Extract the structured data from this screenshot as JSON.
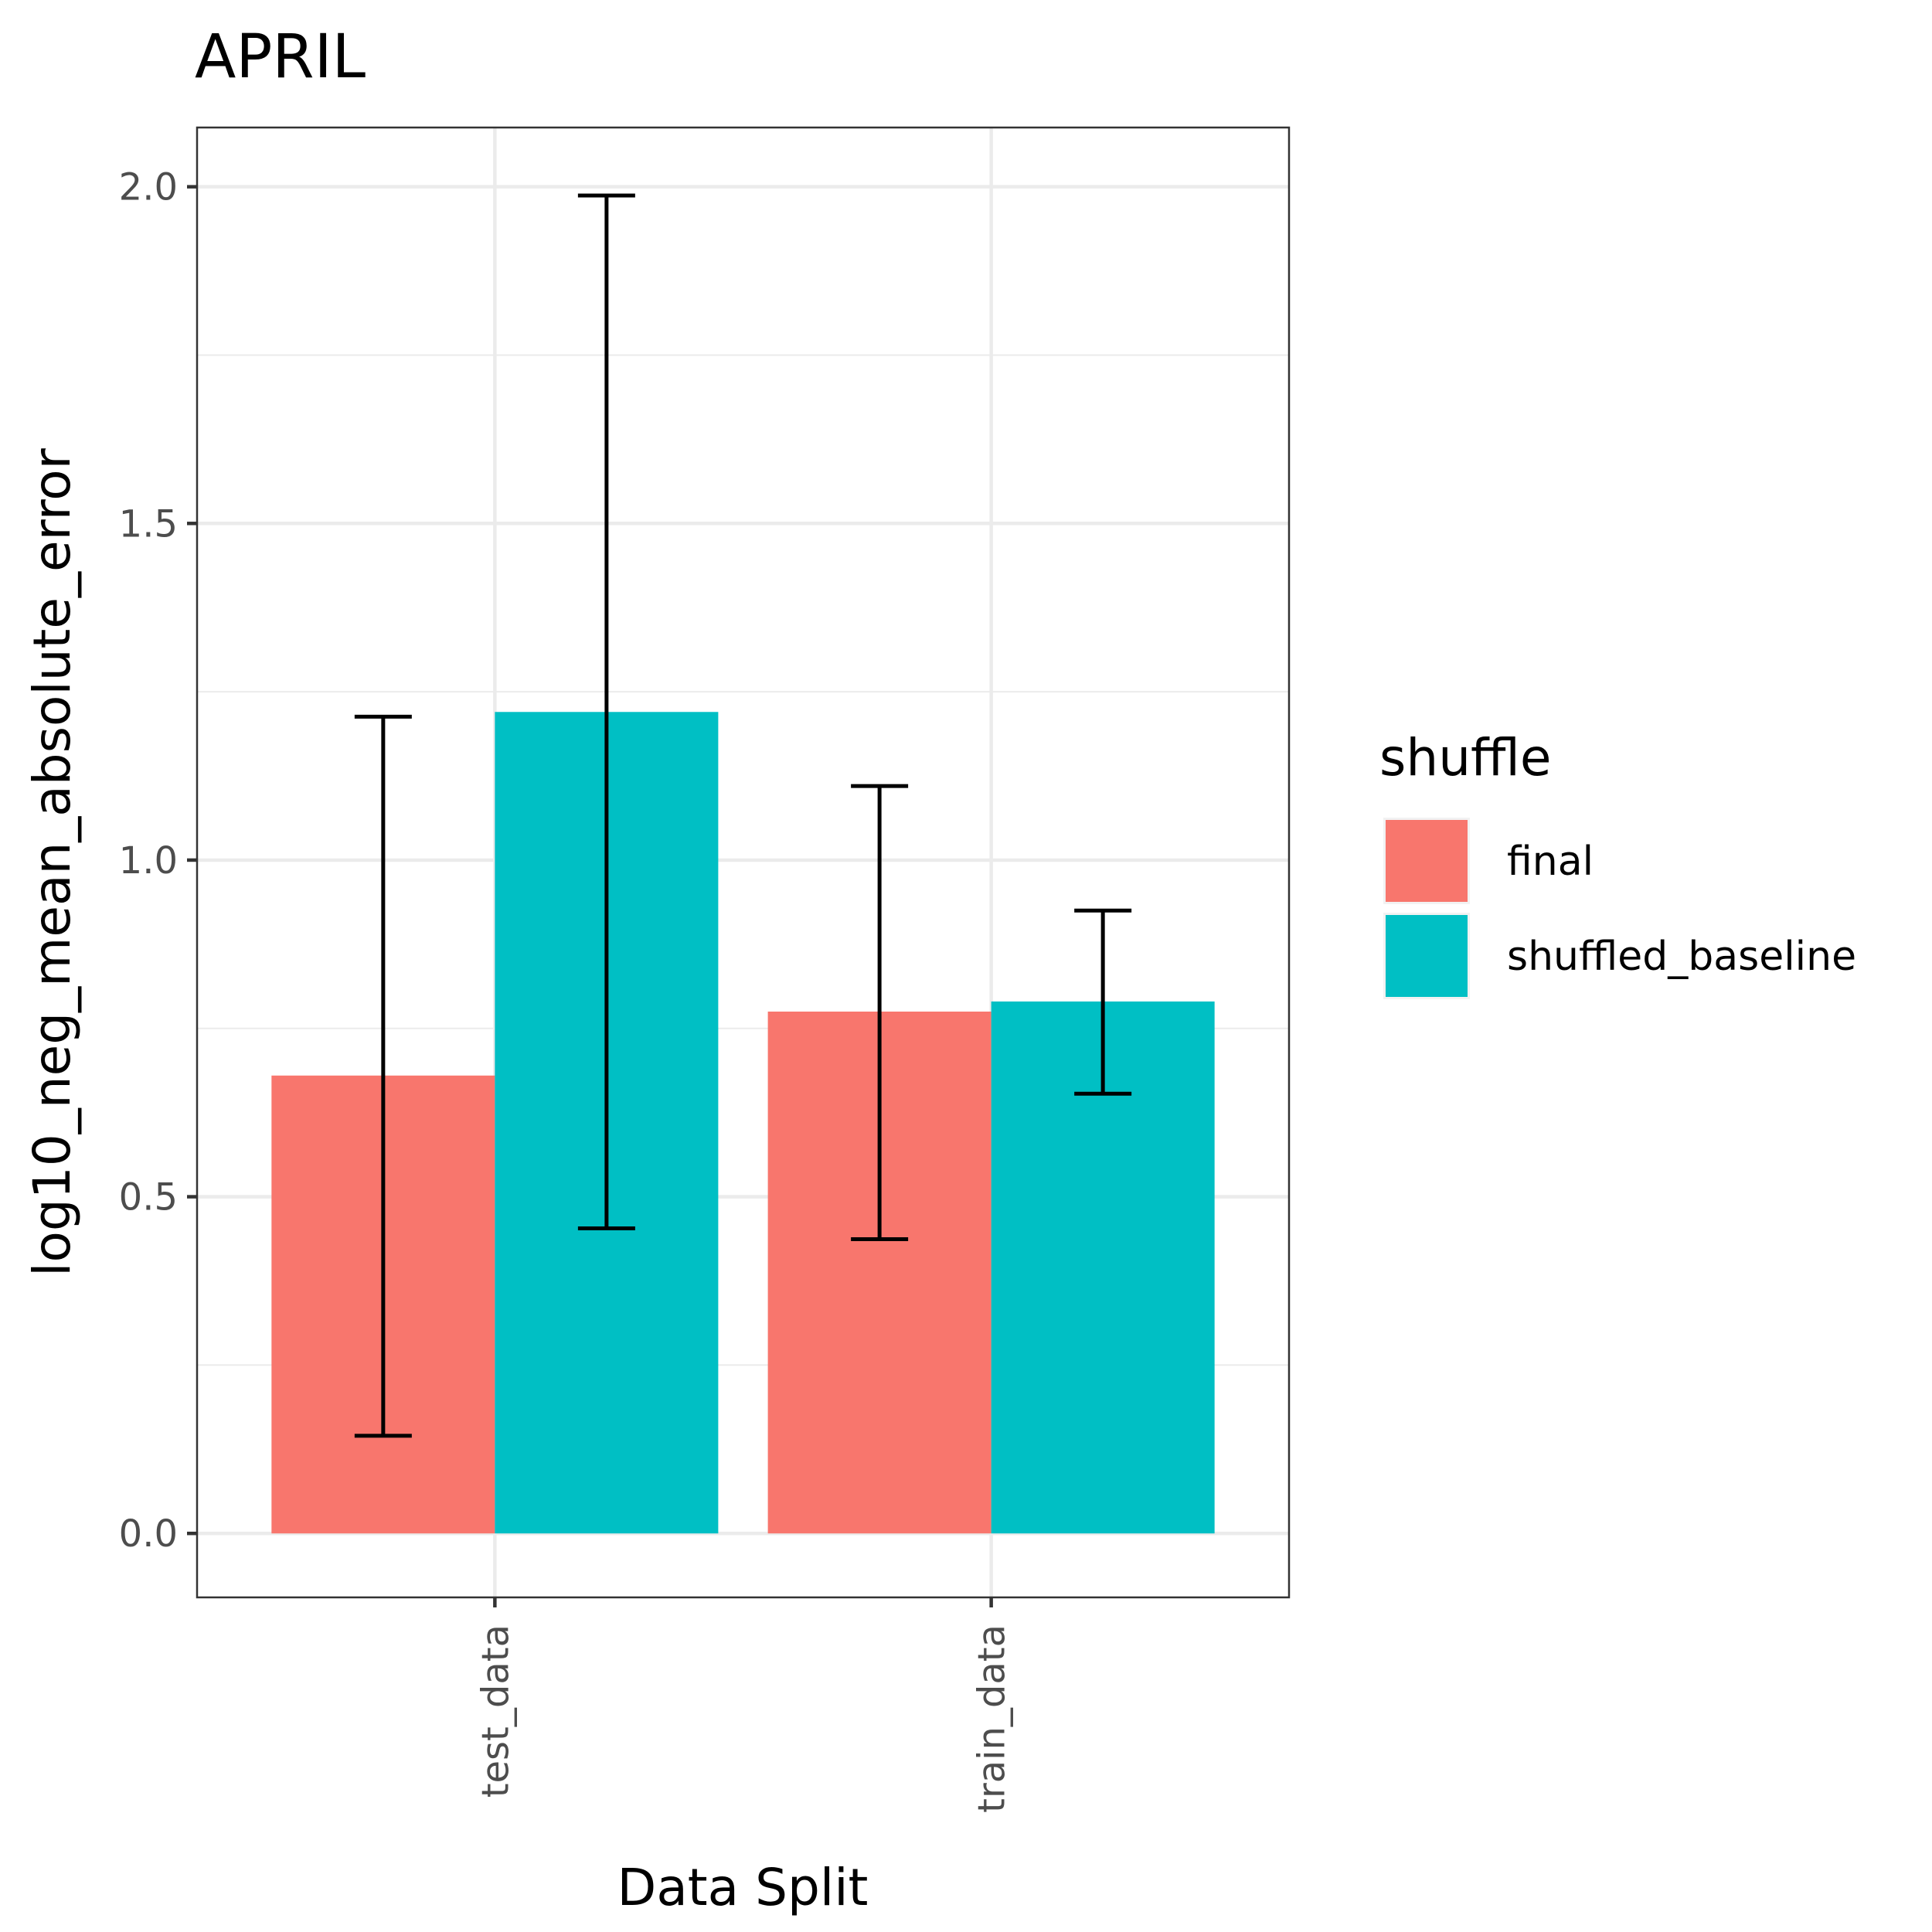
{
  "chart_data": {
    "type": "bar",
    "title": "APRIL",
    "xlabel": "Data Split",
    "ylabel": "log10_neg_mean_absolute_error",
    "categories": [
      "test_data",
      "train_data"
    ],
    "ylim": [
      -0.095,
      2.088
    ],
    "yticks": [
      "0.0",
      "0.5",
      "1.0",
      "1.5",
      "2.0"
    ],
    "ytick_values": [
      0,
      0.5,
      1.0,
      1.5,
      2.0
    ],
    "grid": true,
    "legend": {
      "title": "shuffle",
      "placement": "right"
    },
    "series": [
      {
        "name": "final",
        "color": "#F8766D",
        "values": [
          0.68,
          0.775
        ],
        "error_low": [
          0.145,
          0.437
        ],
        "error_high": [
          1.213,
          1.11
        ]
      },
      {
        "name": "shuffled_baseline",
        "color": "#00BFC4",
        "values": [
          1.22,
          0.79
        ],
        "error_low": [
          0.453,
          0.653
        ],
        "error_high": [
          1.987,
          0.925
        ]
      }
    ]
  }
}
